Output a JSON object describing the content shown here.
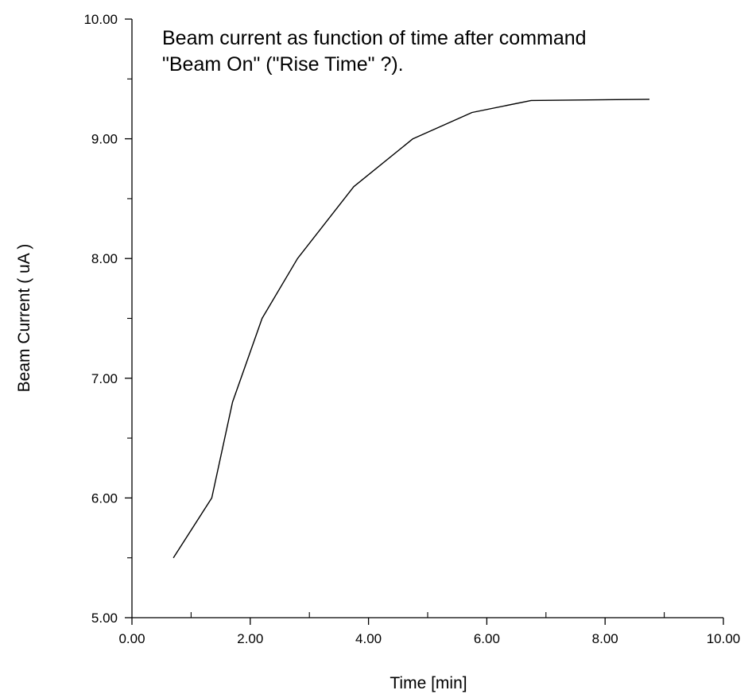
{
  "chart_data": {
    "type": "line",
    "title_lines": [
      "Beam current as function of time after command",
      "\"Beam On\"  (\"Rise Time\" ?)."
    ],
    "xlabel": "Time [min]",
    "ylabel": "Beam Current ( uA )",
    "xlim": [
      0,
      10
    ],
    "ylim": [
      5,
      10
    ],
    "x_major_ticks": [
      0,
      2,
      4,
      6,
      8,
      10
    ],
    "x_minor_ticks": [
      1,
      3,
      5,
      7,
      9
    ],
    "y_major_ticks": [
      5,
      6,
      7,
      8,
      9,
      10
    ],
    "y_minor_ticks": [
      5.5,
      6.5,
      7.5,
      8.5,
      9.5
    ],
    "x_tick_labels": [
      "0.00",
      "2.00",
      "4.00",
      "6.00",
      "8.00",
      "10.00"
    ],
    "y_tick_labels": [
      "5.00",
      "6.00",
      "7.00",
      "8.00",
      "9.00",
      "10.00"
    ],
    "grid": false,
    "series": [
      {
        "x": [
          0.7,
          1.35,
          1.7,
          2.2,
          2.8,
          3.75,
          4.75,
          5.75,
          6.75,
          8.75
        ],
        "y": [
          5.5,
          6.0,
          6.8,
          7.5,
          8.0,
          8.6,
          9.0,
          9.22,
          9.32,
          9.33
        ]
      }
    ]
  }
}
